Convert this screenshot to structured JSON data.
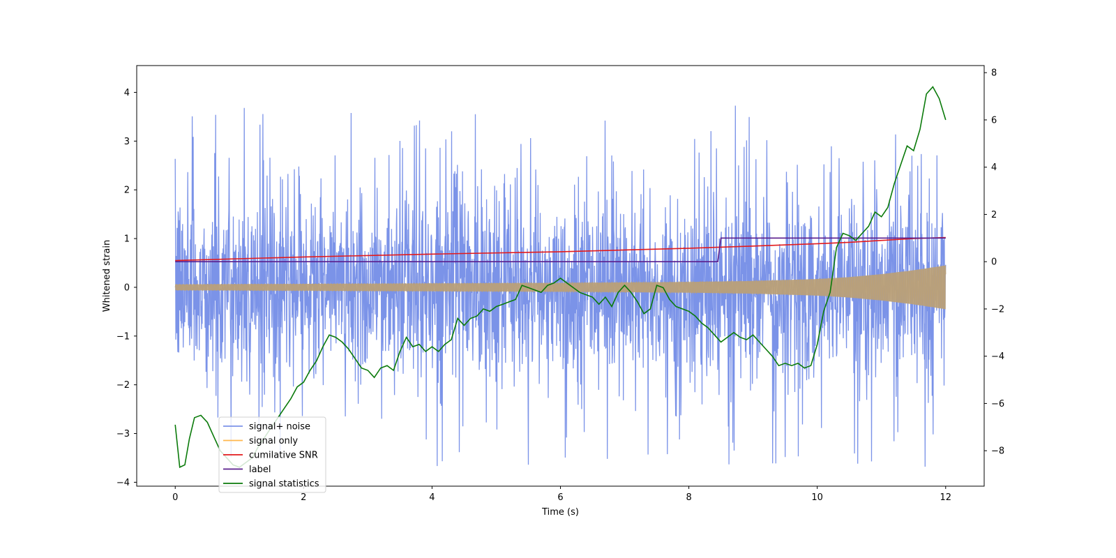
{
  "chart_data": {
    "type": "line",
    "xlabel": "Time (s)",
    "ylabel": "Whitened strain",
    "y2label": "",
    "xlim": [
      -0.6,
      12.6
    ],
    "ylim": [
      -4.08,
      4.55
    ],
    "y2lim": [
      -9.5,
      8.3
    ],
    "xticks": [
      0,
      2,
      4,
      6,
      8,
      10,
      12
    ],
    "yticks": [
      -4,
      -3,
      -2,
      -1,
      0,
      1,
      2,
      3,
      4
    ],
    "y2ticks": [
      -8,
      -6,
      -4,
      -2,
      0,
      2,
      4,
      6,
      8
    ],
    "grid": false,
    "legend": {
      "placement": "lower-left"
    },
    "colors": {
      "noise": "#7b93e8",
      "signal": "#ffb74d",
      "overlap": "#b9a07a",
      "snr": "#e31a1c",
      "label": "#5a1d8c",
      "stats": "#0a7a0a"
    },
    "series": [
      {
        "name": "signal+ noise",
        "axis": "left",
        "note_envelope": "dense noise, upper envelope peaks up to ~4.2, lower to ~-3.7, typical band ±1.3",
        "x_range": [
          0,
          12
        ],
        "max": 4.17,
        "min": -3.68
      },
      {
        "name": "signal only",
        "axis": "left",
        "x": [
          0,
          2,
          4,
          6,
          8,
          9,
          10,
          10.5,
          11,
          11.5,
          12
        ],
        "amplitude": [
          0.06,
          0.07,
          0.08,
          0.09,
          0.11,
          0.13,
          0.17,
          0.21,
          0.27,
          0.35,
          0.45
        ]
      },
      {
        "name": "cumilative SNR",
        "axis": "right",
        "x": [
          0,
          2,
          4,
          6,
          8,
          9,
          10,
          10.5,
          11,
          11.5,
          12
        ],
        "y": [
          0.05,
          0.2,
          0.32,
          0.42,
          0.57,
          0.66,
          0.76,
          0.82,
          0.9,
          0.98,
          1.02
        ]
      },
      {
        "name": "label",
        "axis": "right",
        "x": [
          0,
          8.45,
          8.5,
          12
        ],
        "y": [
          0,
          0,
          1,
          1
        ]
      },
      {
        "name": "signal statistics",
        "axis": "right",
        "x": [
          0,
          0.07,
          0.15,
          0.22,
          0.3,
          0.4,
          0.5,
          0.6,
          0.7,
          0.8,
          0.9,
          1.0,
          1.1,
          1.2,
          1.3,
          1.4,
          1.5,
          1.6,
          1.7,
          1.8,
          1.9,
          2.0,
          2.1,
          2.2,
          2.3,
          2.4,
          2.5,
          2.6,
          2.7,
          2.8,
          2.9,
          3.0,
          3.1,
          3.2,
          3.3,
          3.4,
          3.5,
          3.6,
          3.7,
          3.8,
          3.9,
          4.0,
          4.1,
          4.2,
          4.3,
          4.4,
          4.5,
          4.6,
          4.7,
          4.8,
          4.9,
          5.0,
          5.1,
          5.2,
          5.3,
          5.4,
          5.5,
          5.6,
          5.7,
          5.8,
          5.9,
          6.0,
          6.1,
          6.2,
          6.3,
          6.4,
          6.5,
          6.6,
          6.7,
          6.8,
          6.9,
          7.0,
          7.1,
          7.2,
          7.3,
          7.4,
          7.5,
          7.6,
          7.7,
          7.8,
          7.9,
          8.0,
          8.1,
          8.2,
          8.3,
          8.4,
          8.5,
          8.6,
          8.7,
          8.8,
          8.9,
          9.0,
          9.1,
          9.2,
          9.3,
          9.4,
          9.5,
          9.6,
          9.7,
          9.8,
          9.9,
          10.0,
          10.1,
          10.2,
          10.3,
          10.4,
          10.5,
          10.6,
          10.7,
          10.8,
          10.9,
          11.0,
          11.1,
          11.2,
          11.3,
          11.4,
          11.5,
          11.6,
          11.7,
          11.8,
          11.9,
          12.0
        ],
        "y": [
          -6.9,
          -8.7,
          -8.6,
          -7.5,
          -6.6,
          -6.5,
          -6.8,
          -7.4,
          -8.0,
          -8.3,
          -8.6,
          -8.7,
          -8.5,
          -8.3,
          -7.8,
          -7.4,
          -7.0,
          -6.6,
          -6.2,
          -5.8,
          -5.3,
          -5.1,
          -4.6,
          -4.2,
          -3.6,
          -3.1,
          -3.2,
          -3.4,
          -3.7,
          -4.1,
          -4.5,
          -4.6,
          -4.9,
          -4.5,
          -4.4,
          -4.6,
          -3.8,
          -3.2,
          -3.6,
          -3.5,
          -3.8,
          -3.6,
          -3.8,
          -3.5,
          -3.3,
          -2.4,
          -2.7,
          -2.4,
          -2.3,
          -2.0,
          -2.1,
          -1.9,
          -1.8,
          -1.7,
          -1.6,
          -1.0,
          -1.1,
          -1.2,
          -1.3,
          -1.0,
          -0.9,
          -0.7,
          -0.9,
          -1.1,
          -1.3,
          -1.4,
          -1.5,
          -1.8,
          -1.5,
          -1.9,
          -1.3,
          -1.0,
          -1.3,
          -1.7,
          -2.2,
          -2.0,
          -1.0,
          -1.1,
          -1.6,
          -1.9,
          -2.0,
          -2.1,
          -2.3,
          -2.6,
          -2.8,
          -3.1,
          -3.4,
          -3.2,
          -3.0,
          -3.2,
          -3.3,
          -3.1,
          -3.4,
          -3.7,
          -4.0,
          -4.4,
          -4.3,
          -4.4,
          -4.3,
          -4.5,
          -4.4,
          -3.5,
          -2.1,
          -1.3,
          0.6,
          1.2,
          1.1,
          0.9,
          1.2,
          1.5,
          2.1,
          1.9,
          2.3,
          3.3,
          4.1,
          4.9,
          4.7,
          5.6,
          7.1,
          7.4,
          6.9,
          6.0
        ]
      }
    ]
  }
}
